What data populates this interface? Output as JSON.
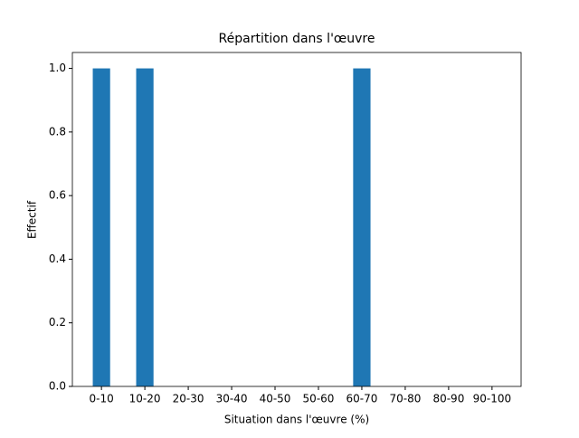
{
  "chart_data": {
    "type": "bar",
    "title": "Répartition dans l'œuvre",
    "x_label": "Situation dans l'œuvre (%)",
    "y_label": "Effectif",
    "categories": [
      "0-10",
      "10-20",
      "20-30",
      "30-40",
      "40-50",
      "50-60",
      "60-70",
      "70-80",
      "80-90",
      "90-100"
    ],
    "values": [
      1,
      1,
      0,
      0,
      0,
      0,
      1,
      0,
      0,
      0
    ],
    "color": "#1f77b4",
    "ylim": [
      0,
      1.05
    ],
    "yticks": [
      {
        "value": 0,
        "label": "0.0"
      },
      {
        "value": 0.2,
        "label": "0.2"
      },
      {
        "value": 0.4,
        "label": "0.4"
      },
      {
        "value": 0.6,
        "label": "0.6"
      },
      {
        "value": 0.8,
        "label": "0.8"
      },
      {
        "value": 1,
        "label": "1.0"
      }
    ],
    "grid": false
  }
}
